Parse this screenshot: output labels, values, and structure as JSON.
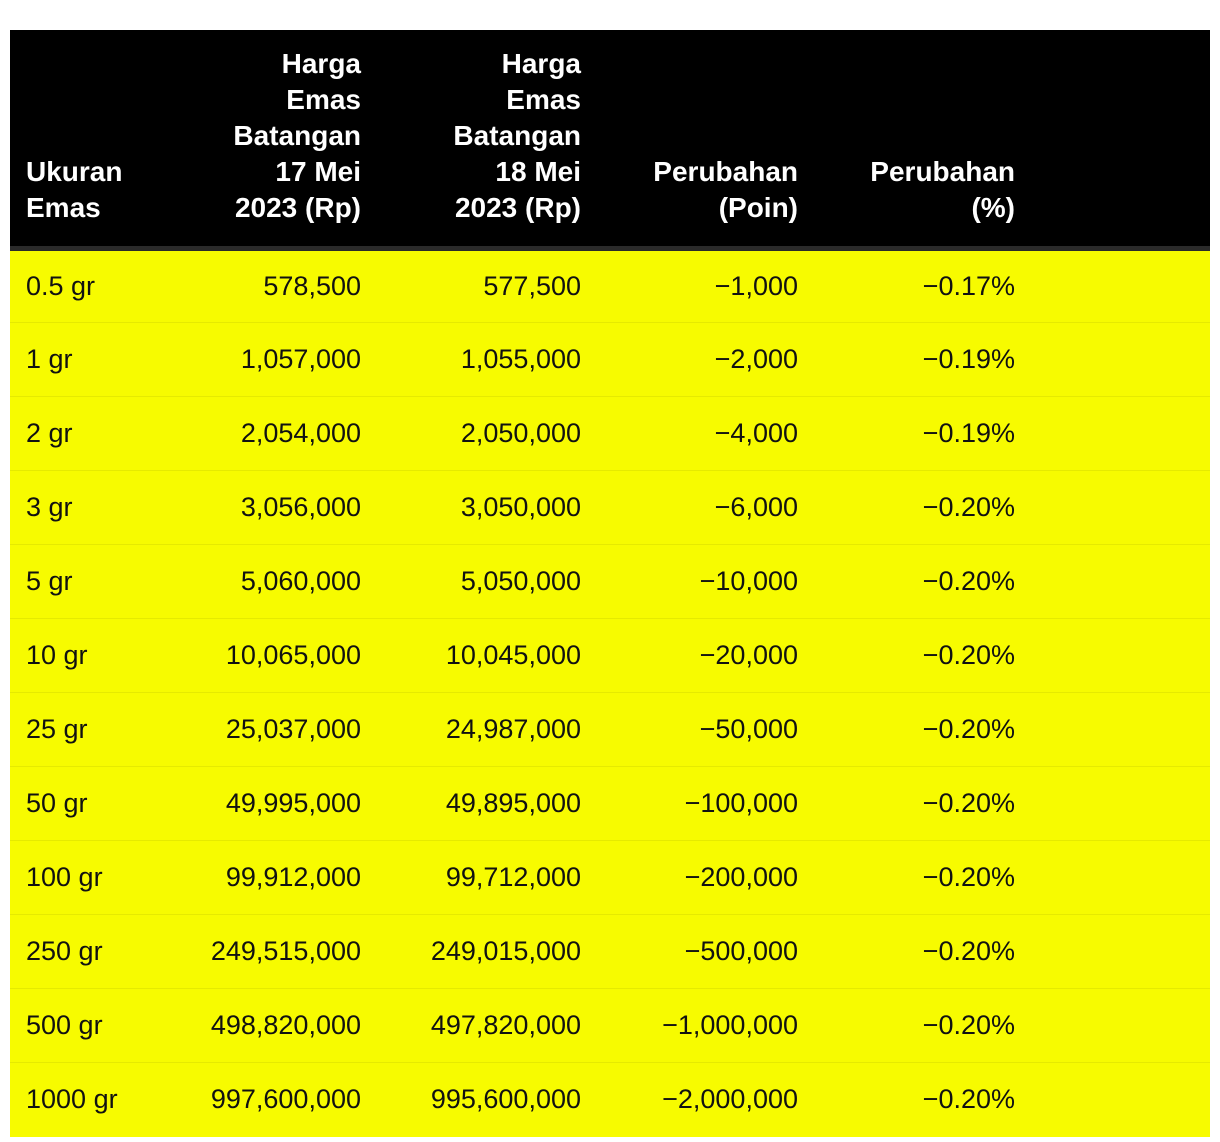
{
  "table": {
    "headers": [
      [
        "Ukuran",
        "Emas"
      ],
      [
        "Harga",
        "Emas",
        "Batangan",
        "17 Mei",
        "2023 (Rp)"
      ],
      [
        "Harga",
        "Emas",
        "Batangan",
        "18 Mei",
        "2023 (Rp)"
      ],
      [
        "Perubahan",
        "(Poin)"
      ],
      [
        "Perubahan",
        "(%)"
      ]
    ],
    "rows": [
      [
        "0.5 gr",
        "578,500",
        "577,500",
        "−1,000",
        "−0.17%"
      ],
      [
        "1 gr",
        "1,057,000",
        "1,055,000",
        "−2,000",
        "−0.19%"
      ],
      [
        "2 gr",
        "2,054,000",
        "2,050,000",
        "−4,000",
        "−0.19%"
      ],
      [
        "3 gr",
        "3,056,000",
        "3,050,000",
        "−6,000",
        "−0.20%"
      ],
      [
        "5 gr",
        "5,060,000",
        "5,050,000",
        "−10,000",
        "−0.20%"
      ],
      [
        "10 gr",
        "10,065,000",
        "10,045,000",
        "−20,000",
        "−0.20%"
      ],
      [
        "25 gr",
        "25,037,000",
        "24,987,000",
        "−50,000",
        "−0.20%"
      ],
      [
        "50 gr",
        "49,995,000",
        "49,895,000",
        "−100,000",
        "−0.20%"
      ],
      [
        "100 gr",
        "99,912,000",
        "99,712,000",
        "−200,000",
        "−0.20%"
      ],
      [
        "250 gr",
        "249,515,000",
        "249,015,000",
        "−500,000",
        "−0.20%"
      ],
      [
        "500 gr",
        "498,820,000",
        "497,820,000",
        "−1,000,000",
        "−0.20%"
      ],
      [
        "1000 gr",
        "997,600,000",
        "995,600,000",
        "−2,000,000",
        "−0.20%"
      ]
    ]
  },
  "colors": {
    "header_bg": "#000000",
    "header_text": "#ffffff",
    "row_bg": "#f7fb00",
    "row_text": "#111111"
  }
}
